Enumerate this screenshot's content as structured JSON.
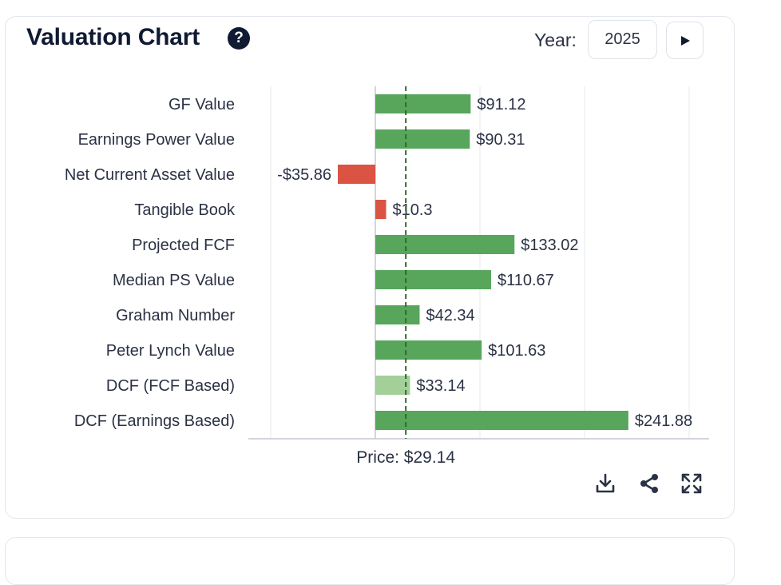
{
  "header": {
    "title": "Valuation Chart",
    "help_glyph": "?",
    "year_label": "Year:",
    "year_value": "2025"
  },
  "icons": [
    "help-icon",
    "play-icon",
    "download-icon",
    "share-icon",
    "expand-icon"
  ],
  "colors": {
    "positive": "#57a65c",
    "positive_light": "#a3cf98",
    "negative": "#db5343",
    "price_line": "#2f6b2a"
  },
  "chart_data": {
    "type": "bar",
    "orientation": "horizontal",
    "categories": [
      "GF Value",
      "Earnings Power Value",
      "Net Current Asset Value",
      "Tangible Book",
      "Projected FCF",
      "Median PS Value",
      "Graham Number",
      "Peter Lynch Value",
      "DCF (FCF Based)",
      "DCF (Earnings Based)"
    ],
    "values": [
      91.12,
      90.31,
      -35.86,
      10.3,
      133.02,
      110.67,
      42.34,
      101.63,
      33.14,
      241.88
    ],
    "value_labels": [
      "$91.12",
      "$90.31",
      "-$35.86",
      "$10.3",
      "$133.02",
      "$110.67",
      "$42.34",
      "$101.63",
      "$33.14",
      "$241.88"
    ],
    "bar_colors": [
      "#57a65c",
      "#57a65c",
      "#db5343",
      "#db5343",
      "#57a65c",
      "#57a65c",
      "#57a65c",
      "#57a65c",
      "#a3cf98",
      "#57a65c"
    ],
    "price": 29.14,
    "price_label": "Price: $29.14",
    "xlim": [
      -120,
      320
    ],
    "grid": true
  }
}
